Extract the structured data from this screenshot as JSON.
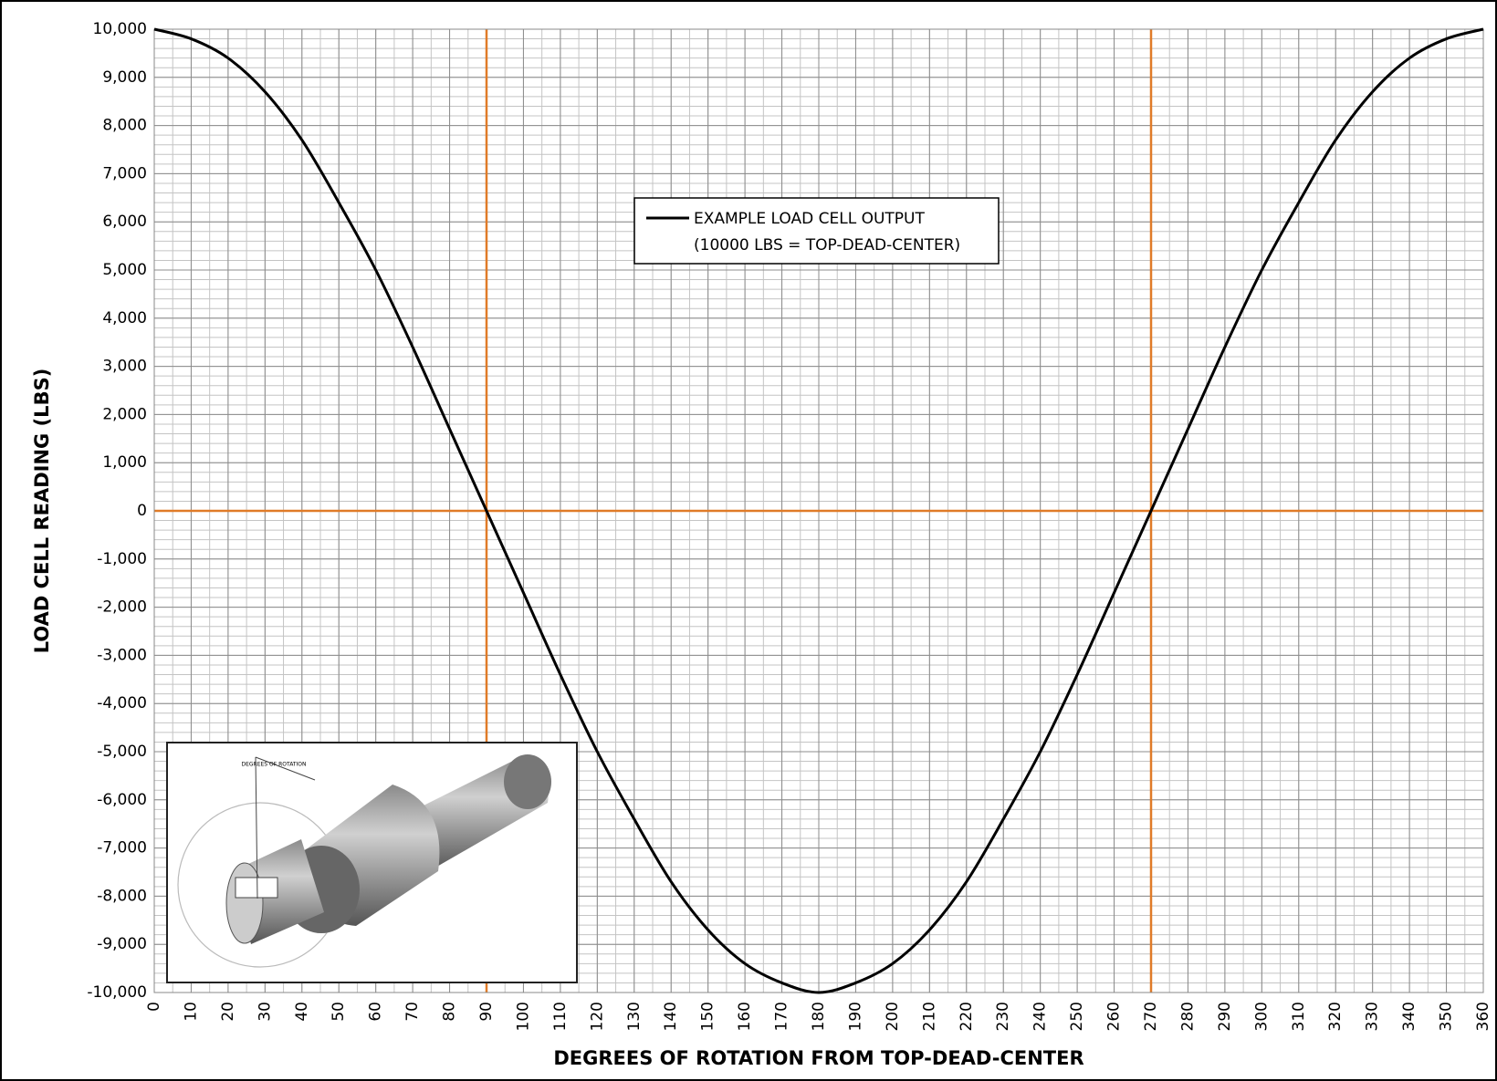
{
  "chart_data": {
    "type": "line",
    "x_label": "DEGREES OF ROTATION FROM TOP-DEAD-CENTER",
    "y_label": "LOAD CELL READING (LBS)",
    "x": [
      0,
      10,
      20,
      30,
      40,
      50,
      60,
      70,
      80,
      90,
      100,
      110,
      120,
      130,
      140,
      150,
      160,
      170,
      180,
      190,
      200,
      210,
      220,
      230,
      240,
      250,
      260,
      270,
      280,
      290,
      300,
      310,
      320,
      330,
      340,
      350,
      360
    ],
    "series": [
      {
        "name": "EXAMPLE LOAD CELL OUTPUT",
        "color": "#000000",
        "values": [
          10000,
          9800,
          9400,
          8700,
          7700,
          6400,
          5000,
          3400,
          1700,
          0,
          -1700,
          -3400,
          -5000,
          -6400,
          -7700,
          -8700,
          -9400,
          -9800,
          -10000,
          -9800,
          -9400,
          -8700,
          -7700,
          -6400,
          -5000,
          -3400,
          -1700,
          0,
          1700,
          3400,
          5000,
          6400,
          7700,
          8700,
          9400,
          9800,
          10000
        ]
      }
    ],
    "legend_note": "(10000 LBS = TOP-DEAD-CENTER)",
    "xlim": [
      0,
      360
    ],
    "ylim": [
      -10000,
      10000
    ],
    "xticks": [
      0,
      10,
      20,
      30,
      40,
      50,
      60,
      70,
      80,
      90,
      100,
      110,
      120,
      130,
      140,
      150,
      160,
      170,
      180,
      190,
      200,
      210,
      220,
      230,
      240,
      250,
      260,
      270,
      280,
      290,
      300,
      310,
      320,
      330,
      340,
      350,
      360
    ],
    "yticks": [
      {
        "value": 10000,
        "label": "10,000"
      },
      {
        "value": 9000,
        "label": "9,000"
      },
      {
        "value": 8000,
        "label": "8,000"
      },
      {
        "value": 7000,
        "label": "7,000"
      },
      {
        "value": 6000,
        "label": "6,000"
      },
      {
        "value": 5000,
        "label": "5,000"
      },
      {
        "value": 4000,
        "label": "4,000"
      },
      {
        "value": 3000,
        "label": "3,000"
      },
      {
        "value": 2000,
        "label": "2,000"
      },
      {
        "value": 1000,
        "label": "1,000"
      },
      0,
      {
        "value": -1000,
        "label": "-1,000"
      },
      {
        "value": -2000,
        "label": "-2,000"
      },
      {
        "value": -3000,
        "label": "-3,000"
      },
      {
        "value": -4000,
        "label": "-4,000"
      },
      {
        "value": -5000,
        "label": "-5,000"
      },
      {
        "value": -6000,
        "label": "-6,000"
      },
      {
        "value": -7000,
        "label": "-7,000"
      },
      {
        "value": -8000,
        "label": "-8,000"
      },
      {
        "value": -9000,
        "label": "-9,000"
      },
      {
        "value": -10000,
        "label": "-10,000"
      }
    ],
    "grid": true,
    "minor_grid": {
      "xstep": 5,
      "ystep": 200
    },
    "reference_lines": {
      "x": [
        90,
        270
      ],
      "y": [
        0
      ],
      "color": "#e07b28"
    },
    "inset_label": "DEGREES OF ROTATION"
  }
}
